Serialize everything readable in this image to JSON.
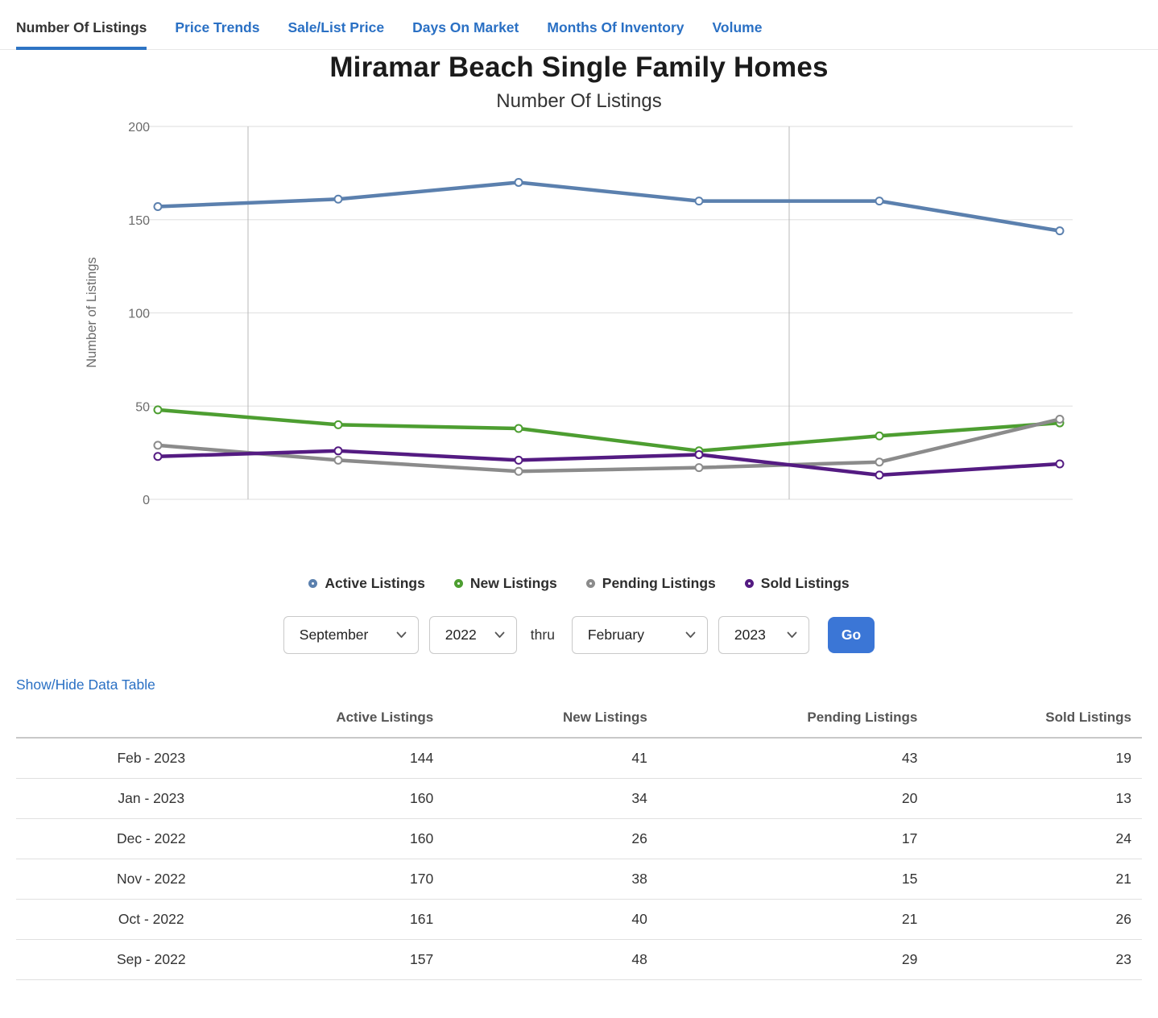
{
  "tabs": {
    "items": [
      {
        "label": "Number Of Listings",
        "active": true
      },
      {
        "label": "Price Trends",
        "active": false
      },
      {
        "label": "Sale/List Price",
        "active": false
      },
      {
        "label": "Days On Market",
        "active": false
      },
      {
        "label": "Months Of Inventory",
        "active": false
      },
      {
        "label": "Volume",
        "active": false
      }
    ],
    "active_underline_color": "#2e74c4",
    "link_color": "#2a70c4"
  },
  "header": {
    "title": "Miramar Beach Single Family Homes",
    "subtitle": "Number Of Listings"
  },
  "chart_data": {
    "type": "line",
    "title": "Miramar Beach Single Family Homes",
    "subtitle": "Number Of Listings",
    "ylabel": "Number of Listings",
    "xlabel": "",
    "x": [
      "9-22",
      "10-22",
      "11-22",
      "12-22",
      "1-23",
      "2-23"
    ],
    "ylim": [
      0,
      200
    ],
    "yticks": [
      0,
      50,
      100,
      150,
      200
    ],
    "grid": "horizontal-major",
    "vertical_gridline_positions": [
      0.5,
      3.5
    ],
    "legend_position": "bottom",
    "marker": "open-circle",
    "series": [
      {
        "name": "Active Listings",
        "color": "#5b80ae",
        "values": [
          157,
          161,
          170,
          160,
          160,
          144
        ]
      },
      {
        "name": "New Listings",
        "color": "#4d9e31",
        "values": [
          48,
          40,
          38,
          26,
          34,
          41
        ]
      },
      {
        "name": "Pending Listings",
        "color": "#8b8b8b",
        "values": [
          29,
          21,
          15,
          17,
          20,
          43
        ]
      },
      {
        "name": "Sold Listings",
        "color": "#541b82",
        "values": [
          23,
          26,
          21,
          24,
          13,
          19
        ]
      }
    ]
  },
  "controls": {
    "start_month": "September",
    "start_year": "2022",
    "thru_label": "thru",
    "end_month": "February",
    "end_year": "2023",
    "go_label": "Go",
    "go_color": "#3b76d6"
  },
  "table": {
    "toggle_label": "Show/Hide Data Table",
    "columns": [
      "",
      "Active Listings",
      "New Listings",
      "Pending Listings",
      "Sold Listings"
    ],
    "rows": [
      {
        "period": "Feb - 2023",
        "values": [
          144,
          41,
          43,
          19
        ]
      },
      {
        "period": "Jan - 2023",
        "values": [
          160,
          34,
          20,
          13
        ]
      },
      {
        "period": "Dec - 2022",
        "values": [
          160,
          26,
          17,
          24
        ]
      },
      {
        "period": "Nov - 2022",
        "values": [
          170,
          38,
          15,
          21
        ]
      },
      {
        "period": "Oct - 2022",
        "values": [
          161,
          40,
          21,
          26
        ]
      },
      {
        "period": "Sep - 2022",
        "values": [
          157,
          48,
          29,
          23
        ]
      }
    ]
  }
}
